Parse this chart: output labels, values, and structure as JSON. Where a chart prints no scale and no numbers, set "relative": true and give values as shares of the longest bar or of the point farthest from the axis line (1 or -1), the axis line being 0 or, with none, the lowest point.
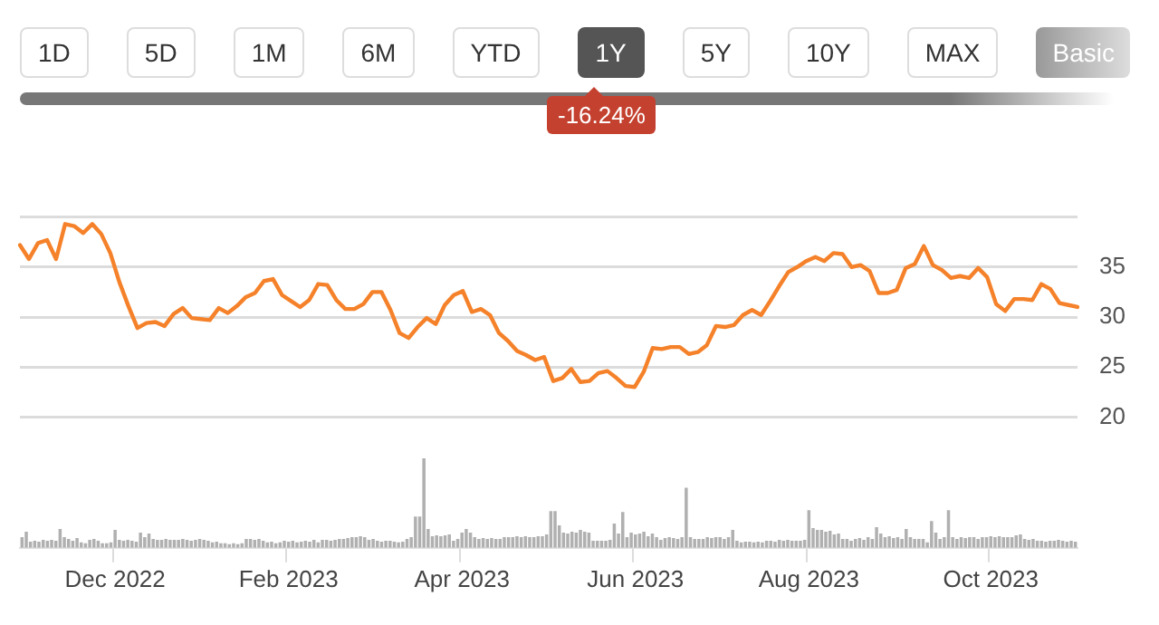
{
  "chart_data": [
    {
      "type": "line",
      "annotations": [
        "1D",
        "5D",
        "1M",
        "6M",
        "YTD",
        "1Y",
        "5Y",
        "10Y",
        "MAX",
        "Basic",
        "-16.24%"
      ],
      "categories": [
        null,
        null,
        null,
        null,
        null,
        null,
        null,
        null,
        null,
        null,
        null,
        null,
        null,
        null,
        null,
        null,
        null,
        null,
        null,
        null,
        null,
        null,
        null,
        null,
        null,
        null,
        null,
        null,
        null,
        null,
        null,
        null,
        null,
        null,
        null,
        null,
        null,
        null,
        null,
        null,
        null,
        null,
        null,
        null,
        null,
        null,
        null,
        null,
        null,
        null,
        null,
        null,
        null,
        null,
        null,
        null,
        null,
        null,
        null,
        null,
        null,
        null,
        null,
        null,
        null,
        null,
        null,
        null,
        null,
        null,
        null,
        null,
        null,
        null,
        null,
        null,
        null,
        null,
        null,
        null,
        null,
        null,
        null,
        null,
        null,
        null,
        null,
        null,
        null,
        null,
        null,
        null,
        null,
        null,
        null,
        null,
        null,
        null,
        null,
        null,
        null,
        null,
        null,
        null,
        null,
        null,
        null,
        null,
        null,
        null,
        null,
        null,
        null,
        null,
        null,
        null,
        null,
        null
      ],
      "series": [
        {
          "color": "#f5822a",
          "values": [
            37.2,
            35.8,
            37.4,
            37.7,
            35.8,
            39.3,
            39.1,
            38.4,
            39.3,
            38.3,
            36.4,
            33.5,
            31.1,
            28.9,
            29.4,
            29.5,
            29.1,
            30.3,
            30.9,
            29.9,
            29.8,
            29.7,
            30.9,
            30.4,
            31.1,
            32.0,
            32.4,
            33.6,
            33.8,
            32.2,
            31.6,
            31.0,
            31.7,
            33.3,
            33.2,
            31.7,
            30.8,
            30.8,
            31.3,
            32.5,
            32.5,
            30.7,
            28.4,
            27.9,
            29.0,
            29.9,
            29.3,
            31.2,
            32.2,
            32.6,
            30.5,
            30.8,
            30.2,
            28.4,
            27.6,
            26.6,
            26.2,
            25.7,
            26.0,
            23.6,
            23.9,
            24.8,
            23.5,
            23.6,
            24.4,
            24.6,
            23.9,
            23.1,
            23.0,
            24.5,
            26.9,
            26.8,
            27.0,
            27.0,
            26.3,
            26.5,
            27.2,
            29.1,
            29.0,
            29.2,
            30.2,
            30.7,
            30.2,
            31.6,
            33.1,
            34.5,
            35.0,
            35.6,
            36.0,
            35.6,
            36.4,
            36.3,
            35.0,
            35.2,
            34.6,
            32.4,
            32.4,
            32.7,
            34.9,
            35.3,
            37.1,
            35.2,
            34.7,
            33.9,
            34.1,
            33.9,
            34.9,
            34.0,
            31.3,
            30.6,
            31.8,
            31.8,
            31.7,
            33.3,
            32.8,
            31.4,
            31.2,
            31.0
          ]
        }
      ],
      "ylim": [
        20,
        40
      ],
      "yticks": [
        20,
        25,
        30,
        35,
        {
          "value": 40,
          "label": null
        }
      ],
      "grid": "y",
      "tick_labels": "y",
      "marker": "none",
      "line_style": "solid"
    },
    {
      "type": "bar",
      "relative": true,
      "color": "#b0b0b0",
      "tick_labels": "x",
      "categories": [
        null,
        null,
        null,
        null,
        null,
        null,
        null,
        null,
        null,
        null,
        null,
        null,
        null,
        null,
        null,
        null,
        null,
        null,
        null,
        null,
        null,
        null,
        "Dec 2022",
        null,
        null,
        null,
        null,
        null,
        null,
        null,
        null,
        null,
        null,
        null,
        null,
        null,
        null,
        null,
        null,
        null,
        null,
        null,
        null,
        null,
        null,
        null,
        null,
        null,
        null,
        null,
        null,
        null,
        null,
        null,
        null,
        null,
        null,
        null,
        null,
        null,
        null,
        null,
        null,
        "Feb 2023",
        null,
        null,
        null,
        null,
        null,
        null,
        null,
        null,
        null,
        null,
        null,
        null,
        null,
        null,
        null,
        null,
        null,
        null,
        null,
        null,
        null,
        null,
        null,
        null,
        null,
        null,
        null,
        null,
        null,
        null,
        null,
        null,
        null,
        null,
        null,
        null,
        null,
        null,
        null,
        null,
        "Apr 2023",
        null,
        null,
        null,
        null,
        null,
        null,
        null,
        null,
        null,
        null,
        null,
        null,
        null,
        null,
        null,
        null,
        null,
        null,
        null,
        null,
        null,
        null,
        null,
        null,
        null,
        null,
        null,
        null,
        null,
        null,
        null,
        null,
        null,
        null,
        null,
        null,
        null,
        null,
        null,
        null,
        "Jun 2023",
        null,
        null,
        null,
        null,
        null,
        null,
        null,
        null,
        null,
        null,
        null,
        null,
        null,
        null,
        null,
        null,
        null,
        null,
        null,
        null,
        null,
        null,
        null,
        null,
        null,
        null,
        null,
        null,
        null,
        null,
        null,
        null,
        null,
        null,
        null,
        null,
        null,
        null,
        null,
        null,
        "Aug 2023",
        null,
        null,
        null,
        null,
        null,
        null,
        null,
        null,
        null,
        null,
        null,
        null,
        null,
        null,
        null,
        null,
        null,
        null,
        null,
        null,
        null,
        null,
        null,
        null,
        null,
        null,
        null,
        null,
        null,
        null,
        null,
        null,
        null,
        null,
        null,
        null,
        null,
        null,
        null,
        null,
        null,
        null,
        "Oct 2023",
        null,
        null,
        null,
        null,
        null,
        null,
        null,
        null,
        null,
        null,
        null,
        null,
        null,
        null,
        null,
        null,
        null,
        null,
        null,
        null
      ],
      "values": [
        0.12,
        0.18,
        0.07,
        0.08,
        0.07,
        0.09,
        0.08,
        0.09,
        0.08,
        0.21,
        0.12,
        0.1,
        0.08,
        0.11,
        0.06,
        0.05,
        0.09,
        0.1,
        0.08,
        0.05,
        0.05,
        0.06,
        0.2,
        0.09,
        0.08,
        0.09,
        0.08,
        0.07,
        0.17,
        0.12,
        0.16,
        0.1,
        0.09,
        0.09,
        0.1,
        0.09,
        0.09,
        0.09,
        0.1,
        0.09,
        0.08,
        0.09,
        0.1,
        0.09,
        0.08,
        0.06,
        0.07,
        0.05,
        0.05,
        0.04,
        0.05,
        0.04,
        0.05,
        0.1,
        0.1,
        0.09,
        0.1,
        0.08,
        0.06,
        0.07,
        0.05,
        0.06,
        0.08,
        0.07,
        0.08,
        0.06,
        0.07,
        0.08,
        0.07,
        0.09,
        0.06,
        0.09,
        0.09,
        0.08,
        0.09,
        0.1,
        0.1,
        0.11,
        0.12,
        0.12,
        0.13,
        0.12,
        0.09,
        0.1,
        0.08,
        0.07,
        0.08,
        0.08,
        0.07,
        0.06,
        0.07,
        0.1,
        0.12,
        0.35,
        0.35,
        1,
        0.21,
        0.13,
        0.14,
        0.13,
        0.14,
        0.15,
        0.08,
        0.1,
        0.17,
        0.21,
        0.17,
        0.12,
        0.1,
        0.11,
        0.1,
        0.11,
        0.1,
        0.1,
        0.12,
        0.12,
        0.12,
        0.13,
        0.12,
        0.13,
        0.12,
        0.12,
        0.13,
        0.13,
        0.15,
        0.41,
        0.41,
        0.25,
        0.17,
        0.16,
        0.18,
        0.17,
        0.2,
        0.18,
        0.17,
        0.08,
        0.08,
        0.08,
        0.08,
        0.09,
        0.27,
        0.16,
        0.4,
        0.12,
        0.17,
        0.15,
        0.16,
        0.18,
        0.13,
        0.16,
        0.12,
        0.09,
        0.11,
        0.12,
        0.11,
        0.1,
        0.12,
        0.67,
        0.12,
        0.1,
        0.1,
        0.1,
        0.12,
        0.11,
        0.12,
        0.12,
        0.1,
        0.12,
        0.2,
        0.08,
        0.06,
        0.07,
        0.07,
        0.06,
        0.07,
        0.06,
        0.08,
        0.08,
        0.07,
        0.09,
        0.08,
        0.09,
        0.08,
        0.08,
        0.08,
        0.09,
        0.42,
        0.22,
        0.2,
        0.2,
        0.18,
        0.19,
        0.15,
        0.16,
        0.1,
        0.1,
        0.08,
        0.1,
        0.11,
        0.09,
        0.12,
        0.1,
        0.23,
        0.16,
        0.12,
        0.13,
        0.11,
        0.12,
        0.1,
        0.21,
        0.12,
        0.1,
        0.1,
        0.1,
        0.06,
        0.3,
        0.17,
        0.1,
        0.12,
        0.42,
        0.12,
        0.1,
        0.12,
        0.11,
        0.12,
        0.12,
        0.1,
        0.12,
        0.12,
        0.13,
        0.12,
        0.13,
        0.12,
        0.12,
        0.12,
        0.14,
        0.15,
        0.1,
        0.09,
        0.1,
        0.08,
        0.08,
        0.07,
        0.08,
        0.08,
        0.09,
        0.08,
        0.07,
        0.08,
        0.07
      ]
    }
  ]
}
